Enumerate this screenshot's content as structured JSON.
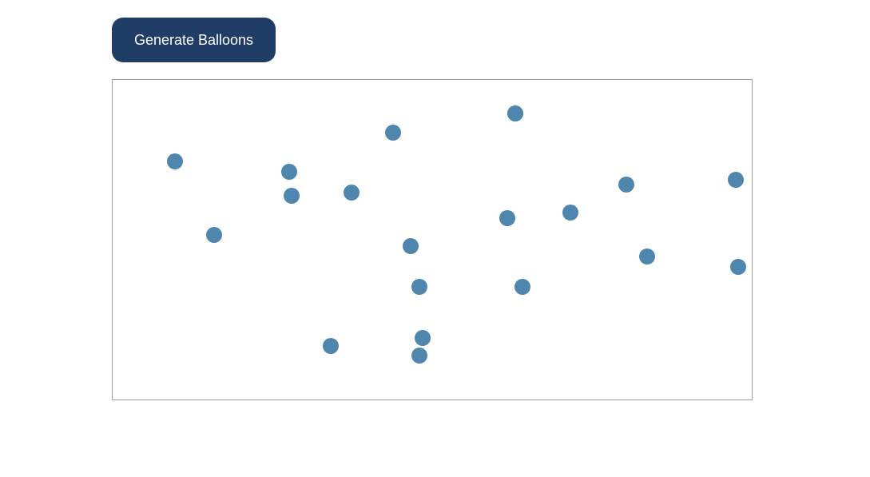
{
  "toolbar": {
    "generate_label": "Generate Balloons"
  },
  "colors": {
    "button_bg": "#1f3d66",
    "balloon_fill": "#4e86ad",
    "canvas_border": "#9e9e9e"
  },
  "balloons": {
    "count": 20
  }
}
